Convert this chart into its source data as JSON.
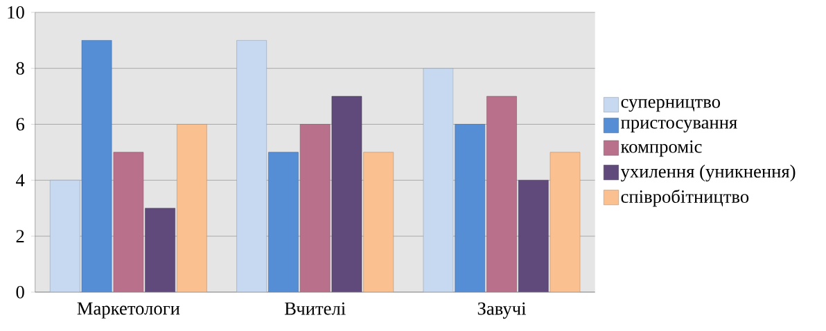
{
  "chart_data": {
    "type": "bar",
    "categories": [
      "Маркетологи",
      "Вчителі",
      "Завучі"
    ],
    "series": [
      {
        "name": "суперництво",
        "color": "#c6d9f1",
        "values": [
          4,
          9,
          8
        ]
      },
      {
        "name": "пристосування",
        "color": "#558ed5",
        "values": [
          9,
          5,
          6
        ]
      },
      {
        "name": "компроміс",
        "color": "#b9708a",
        "values": [
          5,
          6,
          7
        ]
      },
      {
        "name": "ухилення (уникнення)",
        "color": "#604a7b",
        "values": [
          3,
          7,
          4
        ]
      },
      {
        "name": "співробітництво",
        "color": "#fac090",
        "values": [
          6,
          5,
          5
        ]
      }
    ],
    "ylim": [
      0,
      10
    ],
    "yticks": [
      0,
      2,
      4,
      6,
      8,
      10
    ],
    "grid": "y",
    "legend": "right"
  }
}
